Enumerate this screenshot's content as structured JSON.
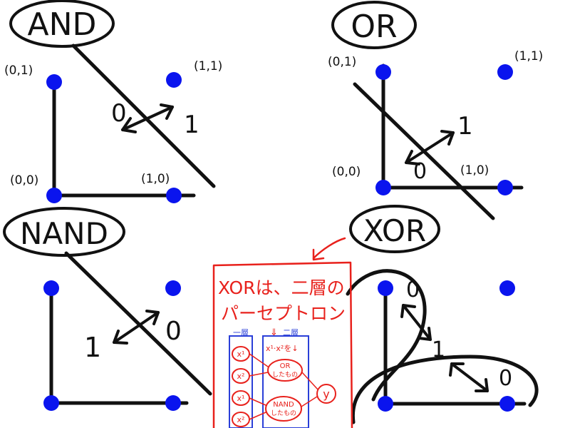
{
  "colors": {
    "ink": "#111111",
    "point": "#0a14ee",
    "note": "#e8211c",
    "box": "#2a3fd8"
  },
  "panels": {
    "and": {
      "title": "AND",
      "label_00": "(0,0)",
      "label_01": "(0,1)",
      "label_10": "(1,0)",
      "label_11": "(1,1)",
      "side_a": "0",
      "side_b": "1"
    },
    "or": {
      "title": "OR",
      "label_00": "(0,0)",
      "label_01": "(0,1)",
      "label_10": "(1,0)",
      "label_11": "(1,1)",
      "side_a": "0",
      "side_b": "1"
    },
    "nand": {
      "title": "NAND",
      "side_a": "1",
      "side_b": "0"
    },
    "xor": {
      "title": "XOR",
      "region_top": "0",
      "region_mid": "1",
      "region_bottom": "0"
    }
  },
  "note": {
    "line1": "XORは、二層の",
    "line2": "パーセプトロン",
    "layer1": "一層",
    "layer2": "二層",
    "arrow_down": "⇓",
    "layer2_caption": "x¹·x²を↓",
    "x1": "x¹",
    "x2": "x²",
    "or_node": "OR",
    "or_sub": "したもの",
    "nand_node": "NAND",
    "nand_sub": "したもの",
    "y_node": "y"
  }
}
